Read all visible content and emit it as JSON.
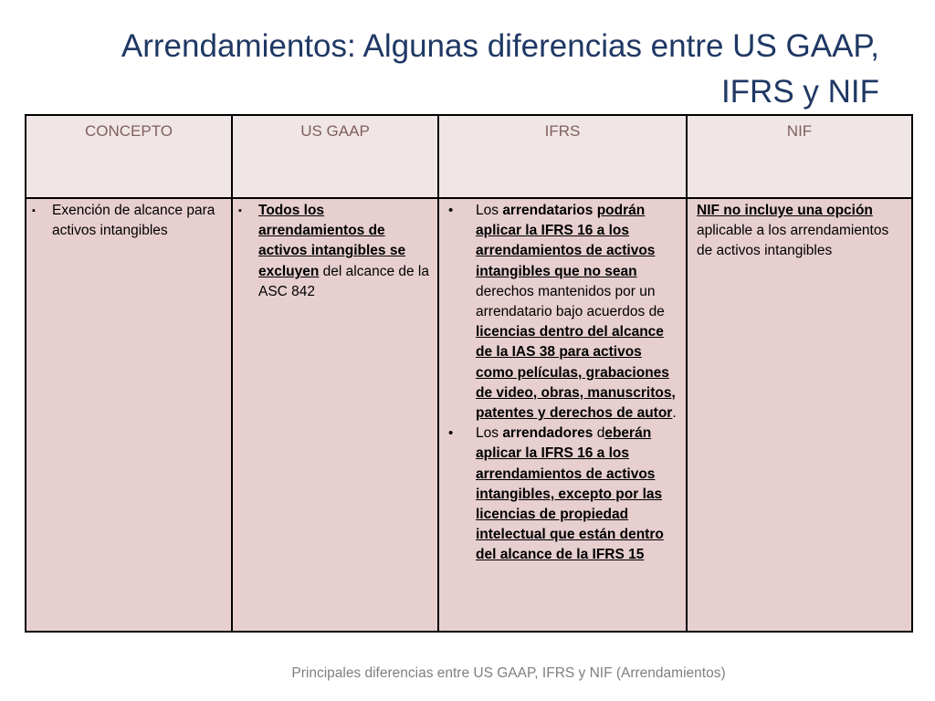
{
  "slide": {
    "title_line1": "Arrendamientos: Algunas diferencias entre US GAAP,",
    "title_line2": "IFRS y NIF",
    "footer": "Principales diferencias entre US GAAP, IFRS y NIF (Arrendamientos)"
  },
  "table": {
    "headers": [
      "CONCEPTO",
      "US GAAP",
      "IFRS",
      "NIF"
    ],
    "concepto": {
      "bullet": "▪",
      "text": "Exención de alcance para activos intangibles"
    },
    "us_gaap": {
      "bullet": "▪",
      "bold_underlined": "Todos los arrendamientos de activos intangibles se excluyen",
      "rest": " del alcance de la ASC 842"
    },
    "ifrs": {
      "bullet": "•",
      "p1_a": "Los ",
      "p1_b": "arrendatarios",
      "p1_c": " ",
      "p1_d": "podrán aplicar la IFRS 16 a los arrendamientos de activos intangibles que no sean",
      "p1_e": " derechos mantenidos por un arrendatario bajo acuerdos de ",
      "p1_f": "licencias dentro del alcance de la IAS 38 para activos como películas, grabaciones de video, obras, manuscritos, patentes y derechos de autor",
      "p1_g": ".",
      "p2_a": "Los ",
      "p2_b": "arrendadores",
      "p2_c": " d",
      "p2_d": "eberán aplicar la IFRS 16 a los arrendamientos de activos intangibles, excepto por las licencias de propiedad intelectual que están dentro del alcance de la IFRS 15"
    },
    "nif": {
      "bold_underlined": "NIF no incluye una opción",
      "rest": " aplicable a los arrendamientos de activos intangibles"
    }
  }
}
